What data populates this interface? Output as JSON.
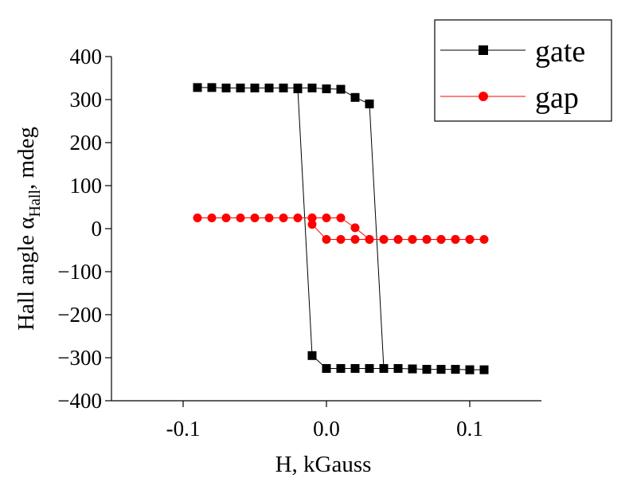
{
  "chart_data": {
    "type": "scatter",
    "xlabel": "H, kGauss",
    "ylabel": {
      "base": "Hall angle α",
      "subscript": "Hall",
      "suffix": ", mdeg"
    },
    "xlim": [
      -0.15,
      0.15
    ],
    "ylim": [
      -400,
      400
    ],
    "xticks": [
      -0.1,
      0.0,
      0.1
    ],
    "xtick_labels": [
      "-0.1",
      "0.0",
      "0.1"
    ],
    "yticks": [
      400,
      300,
      200,
      100,
      0,
      -100,
      -200,
      -300,
      -400
    ],
    "ytick_labels": [
      "400",
      "300",
      "200",
      "100",
      "0",
      "−100",
      "−200",
      "−300",
      "−400"
    ],
    "legend_position": "top-right",
    "series": [
      {
        "name": "gate",
        "color": "#000000",
        "marker": "square",
        "x": [
          -0.09,
          -0.08,
          -0.07,
          -0.06,
          -0.05,
          -0.04,
          -0.03,
          -0.02,
          -0.01,
          0.0,
          0.01,
          0.02,
          0.03,
          0.04,
          0.05,
          0.06,
          0.07,
          0.08,
          0.09,
          0.1,
          0.11,
          0.1,
          0.09,
          0.08,
          0.07,
          0.06,
          0.05,
          0.04,
          0.03,
          0.02,
          0.01,
          0.0,
          -0.01,
          -0.02
        ],
        "y": [
          328,
          328,
          327,
          327,
          327,
          327,
          327,
          327,
          327,
          325,
          324,
          305,
          290,
          -325,
          -325,
          -326,
          -327,
          -327,
          -327,
          -328,
          -328,
          -328,
          -327,
          -327,
          -327,
          -326,
          -325,
          -325,
          -325,
          -325,
          -325,
          -325,
          -295,
          325
        ]
      },
      {
        "name": "gap",
        "color": "#ff0000",
        "marker": "circle",
        "x": [
          -0.09,
          -0.08,
          -0.07,
          -0.06,
          -0.05,
          -0.04,
          -0.03,
          -0.02,
          -0.01,
          0.0,
          0.01,
          0.02,
          0.03,
          0.04,
          0.05,
          0.06,
          0.07,
          0.08,
          0.09,
          0.1,
          0.11,
          0.1,
          0.09,
          0.08,
          0.07,
          0.06,
          0.05,
          0.04,
          0.03,
          0.02,
          0.01,
          0.0,
          -0.01,
          -0.01
        ],
        "y": [
          25,
          25,
          25,
          25,
          25,
          25,
          25,
          25,
          25,
          25,
          25,
          2,
          -25,
          -25,
          -25,
          -25,
          -25,
          -25,
          -25,
          -25,
          -25,
          -25,
          -25,
          -25,
          -25,
          -25,
          -25,
          -25,
          -25,
          -25,
          -25,
          -25,
          10,
          25
        ]
      }
    ]
  }
}
